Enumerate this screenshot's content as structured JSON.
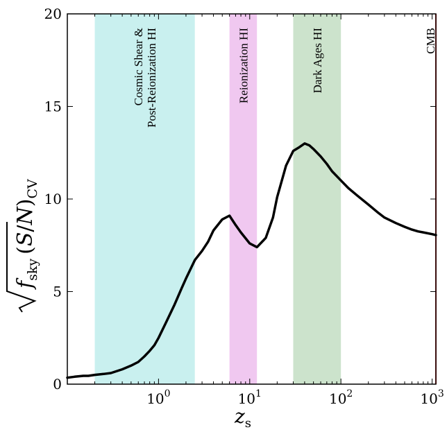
{
  "chart_data": {
    "type": "line",
    "xscale": "log",
    "xlim": [
      0.1,
      1100
    ],
    "ylim": [
      0,
      20
    ],
    "xlabel": "z_s",
    "ylabel": "√f_sky (S/N)_CV",
    "grid": false,
    "xticks": [
      {
        "value": 1,
        "base": "10",
        "exp": "0"
      },
      {
        "value": 10,
        "base": "10",
        "exp": "1"
      },
      {
        "value": 100,
        "base": "10",
        "exp": "2"
      },
      {
        "value": 1000,
        "base": "10",
        "exp": "3"
      }
    ],
    "yticks": [
      {
        "value": 0,
        "label": "0"
      },
      {
        "value": 5,
        "label": "5"
      },
      {
        "value": 10,
        "label": "10"
      },
      {
        "value": 15,
        "label": "15"
      },
      {
        "value": 20,
        "label": "20"
      }
    ],
    "bands": [
      {
        "label_lines": [
          "Cosmic Shear &",
          "Post-Reionization HI"
        ],
        "x0": 0.2,
        "x1": 2.5,
        "color": "#c9f0ef"
      },
      {
        "label_lines": [
          "Reionization HI"
        ],
        "x0": 6,
        "x1": 12,
        "color": "#f0c8f0"
      },
      {
        "label_lines": [
          "Dark Ages HI"
        ],
        "x0": 30,
        "x1": 100,
        "color": "#cce3cc"
      }
    ],
    "marker_line": {
      "label": "CMB",
      "x": 1100,
      "color": "#e03030"
    },
    "series": [
      {
        "color": "#000000",
        "x": [
          0.1,
          0.12,
          0.15,
          0.17,
          0.2,
          0.25,
          0.3,
          0.4,
          0.5,
          0.6,
          0.7,
          0.8,
          0.9,
          1.0,
          1.2,
          1.5,
          1.8,
          2.0,
          2.5,
          3.0,
          3.5,
          4.0,
          5.0,
          6.0,
          7.0,
          8.0,
          10.0,
          12.0,
          15.0,
          18.0,
          20.0,
          25.0,
          30.0,
          35.0,
          40.0,
          45.0,
          50.0,
          60.0,
          70.0,
          80.0,
          100.0,
          120.0,
          150.0,
          200.0,
          250.0,
          300.0,
          400.0,
          500.0,
          600.0,
          700.0,
          800.0,
          1000.0,
          1100.0
        ],
        "y": [
          0.35,
          0.4,
          0.45,
          0.45,
          0.5,
          0.55,
          0.6,
          0.8,
          1.0,
          1.2,
          1.5,
          1.8,
          2.1,
          2.5,
          3.3,
          4.3,
          5.2,
          5.7,
          6.7,
          7.2,
          7.7,
          8.3,
          8.9,
          9.1,
          8.6,
          8.2,
          7.6,
          7.4,
          7.9,
          9.0,
          10.1,
          11.8,
          12.6,
          12.8,
          13.0,
          12.9,
          12.7,
          12.3,
          11.9,
          11.5,
          11.0,
          10.6,
          10.2,
          9.7,
          9.3,
          9.0,
          8.7,
          8.5,
          8.35,
          8.25,
          8.2,
          8.1,
          8.05
        ]
      }
    ]
  }
}
